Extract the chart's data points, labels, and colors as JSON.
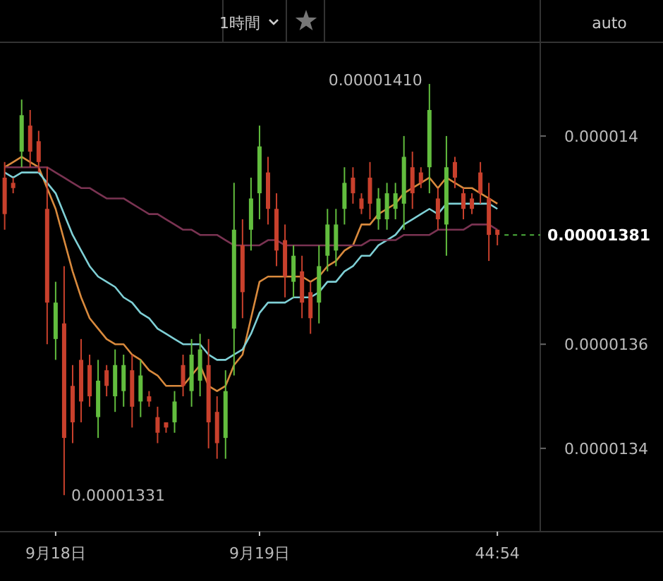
{
  "chart_data": {
    "type": "candlestick",
    "categories": [
      null,
      null,
      null,
      null,
      null,
      null,
      "9月18日",
      null,
      null,
      null,
      null,
      null,
      null,
      null,
      null,
      null,
      null,
      null,
      null,
      null,
      null,
      null,
      null,
      null,
      null,
      null,
      null,
      null,
      null,
      null,
      "9月19日",
      null,
      null,
      null,
      null,
      null,
      null,
      null,
      null,
      null,
      null,
      null,
      null,
      null,
      null,
      null,
      null,
      null,
      null,
      null,
      null,
      null,
      null,
      null,
      null,
      null,
      null,
      null,
      "44:54"
    ],
    "ohlc": [
      [
        1.392e-05,
        1.395e-05,
        1.382e-05,
        1.385e-05
      ],
      [
        1.391e-05,
        1.392e-05,
        1.389e-05,
        1.39e-05
      ],
      [
        1.397e-05,
        1.407e-05,
        1.394e-05,
        1.404e-05
      ],
      [
        1.402e-05,
        1.405e-05,
        1.394e-05,
        1.397e-05
      ],
      [
        1.399e-05,
        1.401e-05,
        1.393e-05,
        1.395e-05
      ],
      [
        1.386e-05,
        1.394e-05,
        1.36e-05,
        1.368e-05
      ],
      [
        1.361e-05,
        1.372e-05,
        1.357e-05,
        1.368e-05
      ],
      [
        1.364e-05,
        1.375e-05,
        1.331e-05,
        1.342e-05
      ],
      [
        1.352e-05,
        1.356e-05,
        1.341e-05,
        1.345e-05
      ],
      [
        1.357e-05,
        1.361e-05,
        1.345e-05,
        1.349e-05
      ],
      [
        1.356e-05,
        1.358e-05,
        1.348e-05,
        1.35e-05
      ],
      [
        1.346e-05,
        1.357e-05,
        1.342e-05,
        1.353e-05
      ],
      [
        1.355e-05,
        1.356e-05,
        1.35e-05,
        1.352e-05
      ],
      [
        1.35e-05,
        1.359e-05,
        1.347e-05,
        1.356e-05
      ],
      [
        1.351e-05,
        1.358e-05,
        1.348e-05,
        1.356e-05
      ],
      [
        1.355e-05,
        1.358e-05,
        1.344e-05,
        1.348e-05
      ],
      [
        1.349e-05,
        1.357e-05,
        1.346e-05,
        1.354e-05
      ],
      [
        1.35e-05,
        1.351e-05,
        1.348e-05,
        1.349e-05
      ],
      [
        1.346e-05,
        1.348e-05,
        1.341e-05,
        1.343e-05
      ],
      [
        1.345e-05,
        1.345e-05,
        1.343e-05,
        1.344e-05
      ],
      [
        1.345e-05,
        1.351e-05,
        1.343e-05,
        1.349e-05
      ],
      [
        1.356e-05,
        1.358e-05,
        1.35e-05,
        1.352e-05
      ],
      [
        1.351e-05,
        1.361e-05,
        1.348e-05,
        1.358e-05
      ],
      [
        1.353e-05,
        1.362e-05,
        1.35e-05,
        1.359e-05
      ],
      [
        1.356e-05,
        1.361e-05,
        1.34e-05,
        1.345e-05
      ],
      [
        1.347e-05,
        1.35e-05,
        1.338e-05,
        1.341e-05
      ],
      [
        1.342e-05,
        1.355e-05,
        1.338e-05,
        1.351e-05
      ],
      [
        1.363e-05,
        1.391e-05,
        1.354e-05,
        1.382e-05
      ],
      [
        1.379e-05,
        1.384e-05,
        1.365e-05,
        1.37e-05
      ],
      [
        1.382e-05,
        1.392e-05,
        1.378e-05,
        1.388e-05
      ],
      [
        1.389e-05,
        1.402e-05,
        1.384e-05,
        1.398e-05
      ],
      [
        1.393e-05,
        1.396e-05,
        1.383e-05,
        1.386e-05
      ],
      [
        1.386e-05,
        1.389e-05,
        1.375e-05,
        1.378e-05
      ],
      [
        1.38e-05,
        1.383e-05,
        1.369e-05,
        1.373e-05
      ],
      [
        1.372e-05,
        1.379e-05,
        1.369e-05,
        1.377e-05
      ],
      [
        1.374e-05,
        1.377e-05,
        1.365e-05,
        1.368e-05
      ],
      [
        1.37e-05,
        1.372e-05,
        1.362e-05,
        1.365e-05
      ],
      [
        1.368e-05,
        1.379e-05,
        1.364e-05,
        1.375e-05
      ],
      [
        1.377e-05,
        1.386e-05,
        1.374e-05,
        1.383e-05
      ],
      [
        1.378e-05,
        1.386e-05,
        1.375e-05,
        1.383e-05
      ],
      [
        1.386e-05,
        1.394e-05,
        1.383e-05,
        1.391e-05
      ],
      [
        1.392e-05,
        1.394e-05,
        1.387e-05,
        1.389e-05
      ],
      [
        1.388e-05,
        1.389e-05,
        1.385e-05,
        1.386e-05
      ],
      [
        1.392e-05,
        1.395e-05,
        1.384e-05,
        1.387e-05
      ],
      [
        1.384e-05,
        1.39e-05,
        1.382e-05,
        1.388e-05
      ],
      [
        1.384e-05,
        1.391e-05,
        1.382e-05,
        1.389e-05
      ],
      [
        1.386e-05,
        1.391e-05,
        1.384e-05,
        1.389e-05
      ],
      [
        1.387e-05,
        1.4e-05,
        1.382e-05,
        1.396e-05
      ],
      [
        1.394e-05,
        1.397e-05,
        1.386e-05,
        1.389e-05
      ],
      [
        1.393e-05,
        1.394e-05,
        1.39e-05,
        1.391e-05
      ],
      [
        1.394e-05,
        1.41e-05,
        1.389e-05,
        1.405e-05
      ],
      [
        1.388e-05,
        1.39e-05,
        1.382e-05,
        1.384e-05
      ],
      [
        1.383e-05,
        1.4e-05,
        1.377e-05,
        1.394e-05
      ],
      [
        1.395e-05,
        1.396e-05,
        1.39e-05,
        1.392e-05
      ],
      [
        1.389e-05,
        1.39e-05,
        1.384e-05,
        1.386e-05
      ],
      [
        1.388e-05,
        1.389e-05,
        1.385e-05,
        1.386e-05
      ],
      [
        1.393e-05,
        1.395e-05,
        1.387e-05,
        1.389e-05
      ],
      [
        1.388e-05,
        1.391e-05,
        1.376e-05,
        1.381e-05
      ],
      [
        1.382e-05,
        1.382e-05,
        1.379e-05,
        1.381e-05
      ]
    ],
    "series": [
      {
        "type": "line",
        "color": "#d98a3d",
        "values": [
          1.394e-05,
          1.395e-05,
          1.396e-05,
          1.395e-05,
          1.394e-05,
          1.39e-05,
          1.386e-05,
          1.38e-05,
          1.374e-05,
          1.369e-05,
          1.365e-05,
          1.363e-05,
          1.361e-05,
          1.36e-05,
          1.36e-05,
          1.358e-05,
          1.357e-05,
          1.355e-05,
          1.354e-05,
          1.352e-05,
          1.352e-05,
          1.352e-05,
          1.354e-05,
          1.356e-05,
          1.352e-05,
          1.351e-05,
          1.352e-05,
          1.356e-05,
          1.358e-05,
          1.365e-05,
          1.372e-05,
          1.373e-05,
          1.373e-05,
          1.373e-05,
          1.373e-05,
          1.373e-05,
          1.372e-05,
          1.373e-05,
          1.375e-05,
          1.376e-05,
          1.378e-05,
          1.379e-05,
          1.383e-05,
          1.383e-05,
          1.385e-05,
          1.386e-05,
          1.387e-05,
          1.389e-05,
          1.39e-05,
          1.391e-05,
          1.392e-05,
          1.39e-05,
          1.392e-05,
          1.391e-05,
          1.39e-05,
          1.39e-05,
          1.389e-05,
          1.388e-05,
          1.387e-05
        ]
      },
      {
        "type": "line",
        "color": "#7fd0d6",
        "values": [
          1.393e-05,
          1.392e-05,
          1.393e-05,
          1.393e-05,
          1.393e-05,
          1.391e-05,
          1.389e-05,
          1.385e-05,
          1.381e-05,
          1.378e-05,
          1.375e-05,
          1.373e-05,
          1.372e-05,
          1.371e-05,
          1.369e-05,
          1.368e-05,
          1.366e-05,
          1.365e-05,
          1.363e-05,
          1.362e-05,
          1.361e-05,
          1.36e-05,
          1.36e-05,
          1.36e-05,
          1.358e-05,
          1.357e-05,
          1.357e-05,
          1.358e-05,
          1.359e-05,
          1.362e-05,
          1.366e-05,
          1.368e-05,
          1.368e-05,
          1.368e-05,
          1.369e-05,
          1.369e-05,
          1.369e-05,
          1.37e-05,
          1.372e-05,
          1.372e-05,
          1.374e-05,
          1.375e-05,
          1.377e-05,
          1.377e-05,
          1.379e-05,
          1.38e-05,
          1.381e-05,
          1.383e-05,
          1.384e-05,
          1.385e-05,
          1.386e-05,
          1.385e-05,
          1.387e-05,
          1.387e-05,
          1.387e-05,
          1.387e-05,
          1.387e-05,
          1.387e-05,
          1.386e-05
        ]
      },
      {
        "type": "line",
        "color": "#7a3352",
        "values": [
          1.394e-05,
          1.394e-05,
          1.394e-05,
          1.394e-05,
          1.394e-05,
          1.394e-05,
          1.393e-05,
          1.392e-05,
          1.391e-05,
          1.39e-05,
          1.39e-05,
          1.389e-05,
          1.388e-05,
          1.388e-05,
          1.388e-05,
          1.387e-05,
          1.386e-05,
          1.385e-05,
          1.385e-05,
          1.384e-05,
          1.383e-05,
          1.382e-05,
          1.382e-05,
          1.381e-05,
          1.381e-05,
          1.381e-05,
          1.38e-05,
          1.379e-05,
          1.379e-05,
          1.379e-05,
          1.379e-05,
          1.38e-05,
          1.38e-05,
          1.379e-05,
          1.379e-05,
          1.379e-05,
          1.379e-05,
          1.379e-05,
          1.379e-05,
          1.379e-05,
          1.379e-05,
          1.379e-05,
          1.379e-05,
          1.38e-05,
          1.38e-05,
          1.38e-05,
          1.38e-05,
          1.381e-05,
          1.381e-05,
          1.381e-05,
          1.381e-05,
          1.382e-05,
          1.382e-05,
          1.382e-05,
          1.382e-05,
          1.383e-05,
          1.383e-05,
          1.383e-05,
          1.382e-05
        ]
      }
    ],
    "ylim": [
      1.324e-05,
      1.418e-05
    ],
    "yticks": [
      {
        "value": 1.34e-05,
        "label": "0.0000134"
      },
      {
        "value": 1.36e-05,
        "label": "0.0000136"
      },
      {
        "value": 1.4e-05,
        "label": "0.000014"
      }
    ],
    "ref_lines": [
      {
        "axis": "y",
        "value": 1.381e-05,
        "label": "0.00001381",
        "color": "#4caf3c",
        "line_style": "dashed"
      }
    ],
    "annotations": [
      "0.00001410",
      "0.00001331",
      "1時間",
      "auto"
    ]
  }
}
